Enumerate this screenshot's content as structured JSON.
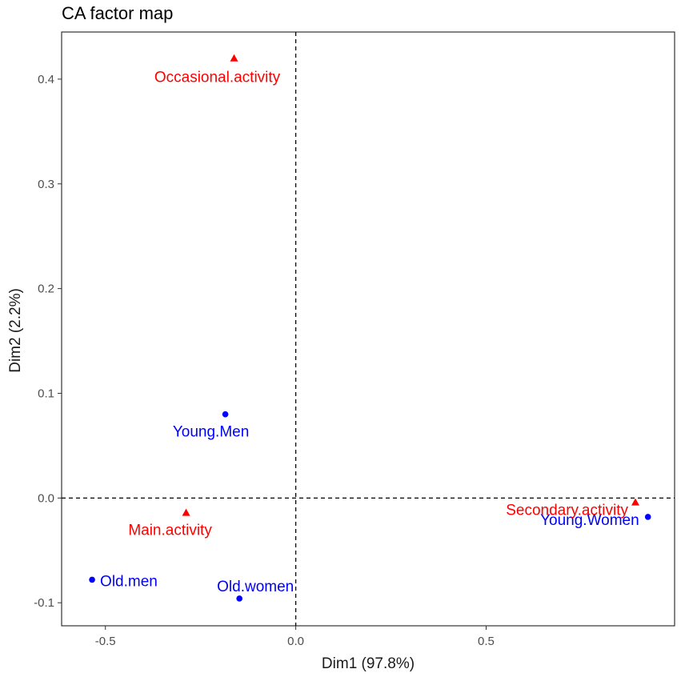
{
  "chart_data": {
    "type": "scatter",
    "title": "CA factor map",
    "xlabel": "Dim1 (97.8%)",
    "ylabel": "Dim2 (2.2%)",
    "xlim": [
      -0.615,
      0.995
    ],
    "ylim": [
      -0.122,
      0.445
    ],
    "xticks": [
      -0.5,
      0.0,
      0.5
    ],
    "xtick_labels": [
      "-0.5",
      "0.0",
      "0.5"
    ],
    "yticks": [
      -0.1,
      0.0,
      0.1,
      0.2,
      0.3,
      0.4
    ],
    "ytick_labels": [
      "-0.1",
      "0.0",
      "0.1",
      "0.2",
      "0.3",
      "0.4"
    ],
    "grid": false,
    "reference_lines": {
      "x": 0,
      "y": 0,
      "style": "dashed"
    },
    "series": [
      {
        "marker": "circle",
        "color": "#0000ff",
        "points": [
          {
            "label": "Young.Men",
            "x": -0.185,
            "y": 0.08
          },
          {
            "label": "Old.men",
            "x": -0.535,
            "y": -0.078
          },
          {
            "label": "Old.women",
            "x": -0.148,
            "y": -0.096
          },
          {
            "label": "Young.Women",
            "x": 0.925,
            "y": -0.018
          }
        ]
      },
      {
        "marker": "triangle",
        "color": "#ff0000",
        "points": [
          {
            "label": "Occasional.activity",
            "x": -0.162,
            "y": 0.42
          },
          {
            "label": "Main.activity",
            "x": -0.288,
            "y": -0.014
          },
          {
            "label": "Secondary.activity",
            "x": 0.892,
            "y": -0.004
          }
        ]
      }
    ]
  }
}
